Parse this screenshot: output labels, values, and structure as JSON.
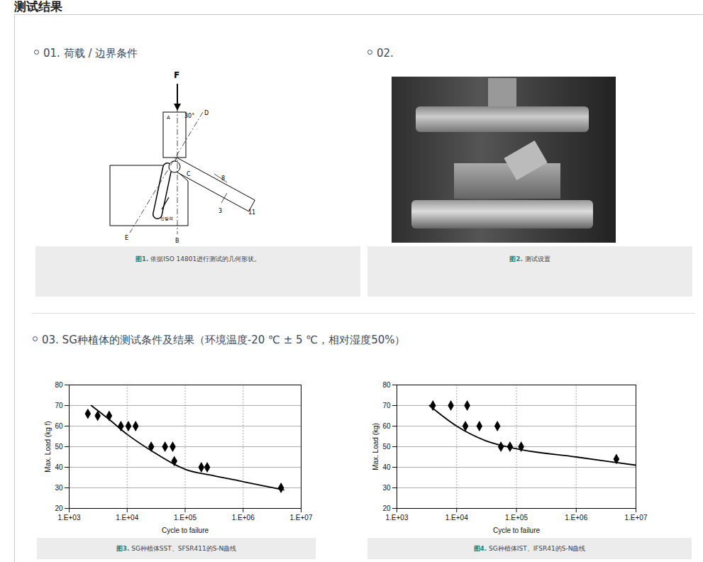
{
  "header": {
    "title": "测试结果"
  },
  "sections": [
    {
      "heading": "01. 荷载 / 边界条件",
      "figure": {
        "caption_label": "图1.",
        "caption": "依据ISO 14801进行测试的几何形状。",
        "diagram_labels": [
          "F",
          "A",
          "30°",
          "D",
          "C",
          "E",
          "B",
          "8",
          "3",
          "11",
          "반발력"
        ]
      }
    },
    {
      "heading": "02.",
      "figure": {
        "caption_label": "图2.",
        "caption": "测试设置"
      }
    },
    {
      "heading": "03. SG种植体的测试条件及结果（环境温度-20 ℃ ± 5 ℃，相对湿度50%）",
      "figures": [
        {
          "caption_label": "图3.",
          "caption": "SG种植体SST、SFSR411的S-N曲线"
        },
        {
          "caption_label": "图4.",
          "caption": "SG种植体IST、IFSR41的S-N曲线"
        }
      ]
    }
  ],
  "chart_data": [
    {
      "type": "scatter",
      "x_label": "Cycle to failure",
      "y_label": "Max. Load (kg f)",
      "log": "x",
      "grid": true,
      "xlim": [
        1000,
        10000000
      ],
      "xticks": [
        {
          "value": 1000,
          "label": "1.E+03"
        },
        {
          "value": 10000,
          "label": "1.E+04"
        },
        {
          "value": 100000,
          "label": "1.E+05"
        },
        {
          "value": 1000000,
          "label": "1.E+06"
        },
        {
          "value": 10000000,
          "label": "1.E+07"
        }
      ],
      "ylim": [
        20,
        80
      ],
      "yticks": [
        20,
        30,
        40,
        50,
        60,
        70,
        80
      ],
      "series": [
        {
          "type": "scatter",
          "marker": "diamond",
          "color": "#000000",
          "x": [
            2100,
            3100,
            4900,
            7800,
            10500,
            14000,
            26000,
            45000,
            61000,
            65000,
            190000,
            240000,
            4500000
          ],
          "values": [
            66,
            65,
            65,
            60,
            60,
            60,
            50,
            50,
            50,
            43,
            40,
            40,
            30
          ]
        },
        {
          "type": "line",
          "line_style": "solid",
          "color": "#000000",
          "x": [
            2400,
            5000,
            10000,
            30000,
            70000,
            100000,
            300000,
            1000000,
            5000000
          ],
          "values": [
            70,
            63,
            56,
            47,
            41,
            39,
            36,
            33,
            29
          ]
        }
      ]
    },
    {
      "type": "scatter",
      "x_label": "Cycle to failure",
      "y_label": "Max. Load (kg)",
      "log": "x",
      "grid": true,
      "xlim": [
        1000,
        10000000
      ],
      "xticks": [
        {
          "value": 1000,
          "label": "1.E+03"
        },
        {
          "value": 10000,
          "label": "1.E+04"
        },
        {
          "value": 100000,
          "label": "1.E+05"
        },
        {
          "value": 1000000,
          "label": "1.E+06"
        },
        {
          "value": 10000000,
          "label": "1.E+07"
        }
      ],
      "ylim": [
        20,
        80
      ],
      "yticks": [
        20,
        30,
        40,
        50,
        60,
        70,
        80
      ],
      "series": [
        {
          "type": "scatter",
          "marker": "diamond",
          "color": "#000000",
          "x": [
            4000,
            8000,
            14000,
            15000,
            24000,
            48000,
            55000,
            78000,
            120000,
            4700000
          ],
          "values": [
            70,
            70,
            60,
            70,
            60,
            60,
            50,
            50,
            50,
            44
          ]
        },
        {
          "type": "line",
          "line_style": "solid",
          "color": "#000000",
          "x": [
            3500,
            10000,
            30000,
            100000,
            1000000,
            10000000
          ],
          "values": [
            70,
            60,
            53,
            49,
            45,
            41
          ]
        }
      ]
    }
  ]
}
